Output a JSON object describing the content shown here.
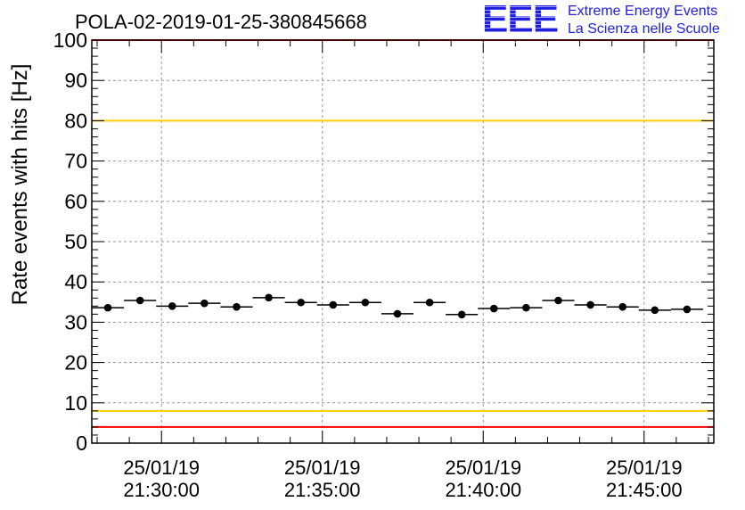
{
  "chart_data": {
    "type": "scatter",
    "title": "POLA-02-2019-01-25-380845668",
    "xlabel": "",
    "ylabel": "Rate events with hits [Hz]",
    "ylim": [
      0,
      100
    ],
    "yticks": [
      0,
      10,
      20,
      30,
      40,
      50,
      60,
      70,
      80,
      90,
      100
    ],
    "xlim": [
      "2019-01-25 21:27:50",
      "2019-01-25 21:47:10"
    ],
    "xticks": [
      {
        "date": "25/01/19",
        "time": "21:30:00",
        "t": "2019-01-25 21:30:00"
      },
      {
        "date": "25/01/19",
        "time": "21:35:00",
        "t": "2019-01-25 21:35:00"
      },
      {
        "date": "25/01/19",
        "time": "21:40:00",
        "t": "2019-01-25 21:40:00"
      },
      {
        "date": "25/01/19",
        "time": "21:45:00",
        "t": "2019-01-25 21:45:00"
      }
    ],
    "grid": true,
    "series": [
      {
        "x": [
          "2019-01-25 21:28:20",
          "2019-01-25 21:29:20",
          "2019-01-25 21:30:20",
          "2019-01-25 21:31:20",
          "2019-01-25 21:32:20",
          "2019-01-25 21:33:20",
          "2019-01-25 21:34:20",
          "2019-01-25 21:35:20",
          "2019-01-25 21:36:20",
          "2019-01-25 21:37:20",
          "2019-01-25 21:38:20",
          "2019-01-25 21:39:20",
          "2019-01-25 21:40:20",
          "2019-01-25 21:41:20",
          "2019-01-25 21:42:20",
          "2019-01-25 21:43:20",
          "2019-01-25 21:44:20",
          "2019-01-25 21:45:20",
          "2019-01-25 21:46:20"
        ],
        "y": [
          33.6,
          35.4,
          34.0,
          34.7,
          33.8,
          36.1,
          34.9,
          34.3,
          34.9,
          32.1,
          34.9,
          31.9,
          33.4,
          33.6,
          35.4,
          34.3,
          33.8,
          33.0,
          33.2
        ],
        "bin_halfwidth_seconds": 30
      }
    ],
    "reference_lines": [
      {
        "y": 100,
        "color": "#ff0000"
      },
      {
        "y": 80,
        "color": "#ffcc00"
      },
      {
        "y": 8,
        "color": "#ffcc00"
      },
      {
        "y": 4,
        "color": "#ff0000"
      }
    ]
  },
  "logo": {
    "mark": "EEE",
    "line1": "Extreme Energy Events",
    "line2": "La Scienza nelle Scuole",
    "color": "#1f1fe0"
  }
}
